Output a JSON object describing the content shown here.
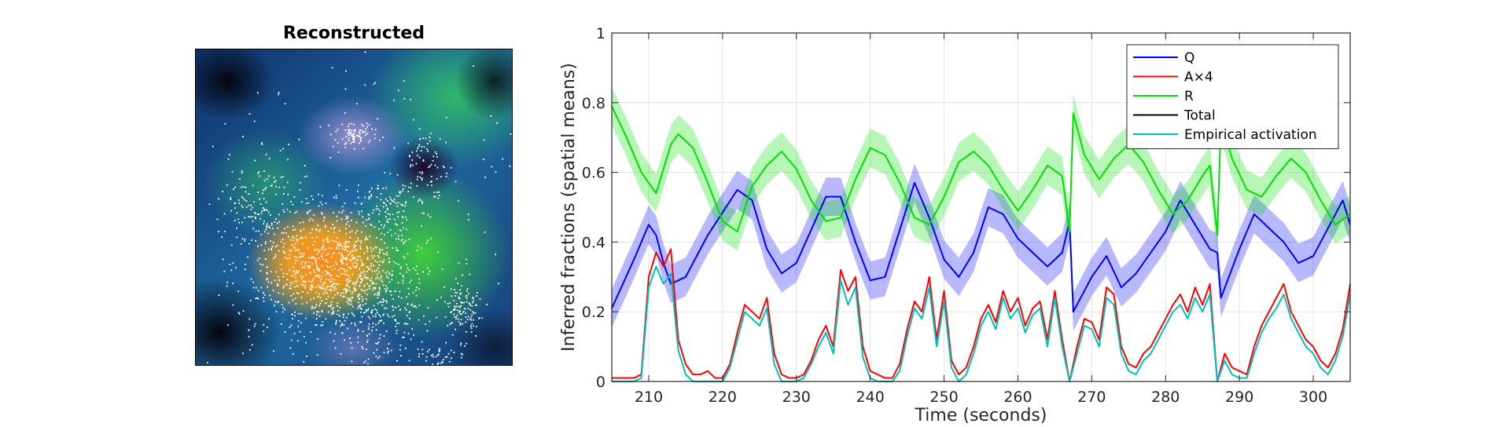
{
  "image_panel": {
    "title": "Reconstructed"
  },
  "chart_data": {
    "type": "line",
    "title": "",
    "xlabel": "Time (seconds)",
    "ylabel": "Inferred fractions (spatial means)",
    "xlim": [
      205,
      305
    ],
    "ylim": [
      0,
      1
    ],
    "xticks": [
      210,
      220,
      230,
      240,
      250,
      260,
      270,
      280,
      290,
      300
    ],
    "yticks": [
      0,
      0.2,
      0.4,
      0.6,
      0.8,
      1
    ],
    "grid": true,
    "legend_position": "top-right",
    "series": [
      {
        "name": "Q",
        "color": "#0000ff",
        "band": true,
        "x": [
          205,
          208,
          210,
          211,
          212,
          213,
          215,
          218,
          222,
          224,
          226,
          228,
          230,
          234,
          236,
          238,
          240,
          242,
          246,
          248,
          250,
          252,
          254,
          256,
          258,
          260,
          262,
          264,
          266,
          267,
          267.5,
          270,
          272,
          274,
          276,
          280,
          282,
          284,
          286,
          287,
          287.5,
          290,
          292,
          294,
          296,
          298,
          300,
          304,
          305
        ],
        "y": [
          0.21,
          0.35,
          0.45,
          0.42,
          0.34,
          0.28,
          0.3,
          0.42,
          0.55,
          0.52,
          0.38,
          0.31,
          0.34,
          0.53,
          0.53,
          0.4,
          0.29,
          0.3,
          0.57,
          0.47,
          0.35,
          0.3,
          0.37,
          0.5,
          0.48,
          0.41,
          0.37,
          0.33,
          0.37,
          0.46,
          0.2,
          0.3,
          0.36,
          0.27,
          0.31,
          0.43,
          0.52,
          0.45,
          0.38,
          0.37,
          0.24,
          0.38,
          0.48,
          0.44,
          0.4,
          0.34,
          0.36,
          0.52,
          0.45
        ]
      },
      {
        "name": "A×4",
        "color": "#ff0000",
        "band": false,
        "x": [
          205,
          208,
          209,
          210,
          211,
          212,
          213,
          214,
          215,
          216,
          217,
          218,
          219,
          220,
          221,
          222,
          223,
          224,
          225,
          226,
          227,
          228,
          229,
          230,
          231,
          232,
          233,
          234,
          235,
          236,
          237,
          238,
          239,
          240,
          241,
          242,
          243,
          244,
          245,
          246,
          247,
          248,
          249,
          250,
          251,
          252,
          253,
          254,
          255,
          256,
          257,
          258,
          259,
          260,
          261,
          262,
          263,
          264,
          265,
          266,
          267,
          268,
          269,
          270,
          271,
          272,
          273,
          274,
          275,
          276,
          277,
          278,
          279,
          280,
          281,
          282,
          283,
          284,
          285,
          286,
          287,
          288,
          289,
          290,
          291,
          292,
          293,
          294,
          295,
          296,
          297,
          298,
          299,
          300,
          301,
          302,
          303,
          304,
          305
        ],
        "y": [
          0.01,
          0.01,
          0.02,
          0.3,
          0.37,
          0.33,
          0.38,
          0.12,
          0.05,
          0.02,
          0.02,
          0.03,
          0.01,
          0.01,
          0.05,
          0.14,
          0.22,
          0.2,
          0.18,
          0.24,
          0.08,
          0.02,
          0.01,
          0.01,
          0.02,
          0.06,
          0.12,
          0.16,
          0.1,
          0.32,
          0.26,
          0.3,
          0.1,
          0.03,
          0.02,
          0.01,
          0.01,
          0.05,
          0.15,
          0.23,
          0.2,
          0.3,
          0.12,
          0.26,
          0.06,
          0.02,
          0.04,
          0.1,
          0.18,
          0.22,
          0.17,
          0.26,
          0.2,
          0.24,
          0.16,
          0.21,
          0.23,
          0.12,
          0.26,
          0.12,
          0.0,
          0.1,
          0.18,
          0.17,
          0.12,
          0.27,
          0.25,
          0.1,
          0.05,
          0.04,
          0.08,
          0.1,
          0.14,
          0.18,
          0.22,
          0.25,
          0.2,
          0.27,
          0.22,
          0.28,
          0.0,
          0.08,
          0.04,
          0.03,
          0.02,
          0.1,
          0.16,
          0.2,
          0.24,
          0.28,
          0.2,
          0.16,
          0.12,
          0.1,
          0.06,
          0.04,
          0.08,
          0.15,
          0.28
        ]
      },
      {
        "name": "R",
        "color": "#00e000",
        "band": true,
        "x": [
          205,
          207,
          209,
          211,
          213,
          214,
          216,
          218,
          220,
          222,
          224,
          226,
          228,
          230,
          232,
          234,
          236,
          238,
          240,
          242,
          244,
          246,
          248,
          250,
          252,
          254,
          256,
          258,
          260,
          262,
          264,
          266,
          267,
          267.5,
          269,
          271,
          273,
          275,
          277,
          279,
          281,
          283,
          285,
          286,
          287,
          287.5,
          289,
          291,
          293,
          295,
          297,
          299,
          301,
          303,
          305
        ],
        "y": [
          0.79,
          0.7,
          0.6,
          0.54,
          0.68,
          0.71,
          0.67,
          0.57,
          0.46,
          0.43,
          0.56,
          0.62,
          0.66,
          0.61,
          0.52,
          0.46,
          0.47,
          0.58,
          0.67,
          0.65,
          0.57,
          0.47,
          0.45,
          0.53,
          0.63,
          0.66,
          0.62,
          0.55,
          0.49,
          0.55,
          0.62,
          0.59,
          0.43,
          0.77,
          0.65,
          0.58,
          0.64,
          0.68,
          0.63,
          0.55,
          0.48,
          0.52,
          0.59,
          0.62,
          0.42,
          0.75,
          0.64,
          0.55,
          0.53,
          0.59,
          0.64,
          0.6,
          0.52,
          0.45,
          0.48
        ]
      },
      {
        "name": "Total",
        "color": "#000000",
        "band": false,
        "x": [
          205,
          305
        ],
        "y": [
          1,
          1
        ]
      },
      {
        "name": "Empirical activation",
        "color": "#00bfbf",
        "band": false,
        "x": [
          205,
          208,
          209,
          210,
          211,
          212,
          213,
          214,
          215,
          216,
          217,
          218,
          219,
          220,
          221,
          222,
          223,
          224,
          225,
          226,
          227,
          228,
          229,
          230,
          231,
          232,
          233,
          234,
          235,
          236,
          237,
          238,
          239,
          240,
          241,
          242,
          243,
          244,
          245,
          246,
          247,
          248,
          249,
          250,
          251,
          252,
          253,
          254,
          255,
          256,
          257,
          258,
          259,
          260,
          261,
          262,
          263,
          264,
          265,
          266,
          267,
          268,
          269,
          270,
          271,
          272,
          273,
          274,
          275,
          276,
          277,
          278,
          279,
          280,
          281,
          282,
          283,
          284,
          285,
          286,
          287,
          288,
          289,
          290,
          291,
          292,
          293,
          294,
          295,
          296,
          297,
          298,
          299,
          300,
          301,
          302,
          303,
          304,
          305
        ],
        "y": [
          0.0,
          0.0,
          0.01,
          0.27,
          0.33,
          0.28,
          0.31,
          0.09,
          0.02,
          0.0,
          0.0,
          0.0,
          0.0,
          0.0,
          0.04,
          0.12,
          0.2,
          0.18,
          0.16,
          0.21,
          0.05,
          0.0,
          0.0,
          0.0,
          0.01,
          0.05,
          0.1,
          0.14,
          0.08,
          0.29,
          0.22,
          0.27,
          0.07,
          0.01,
          0.0,
          0.0,
          0.0,
          0.03,
          0.13,
          0.21,
          0.18,
          0.27,
          0.1,
          0.23,
          0.04,
          0.0,
          0.02,
          0.08,
          0.16,
          0.2,
          0.15,
          0.24,
          0.18,
          0.21,
          0.14,
          0.19,
          0.21,
          0.1,
          0.24,
          0.1,
          0.0,
          0.08,
          0.16,
          0.15,
          0.1,
          0.24,
          0.22,
          0.08,
          0.03,
          0.02,
          0.06,
          0.08,
          0.12,
          0.16,
          0.2,
          0.22,
          0.18,
          0.24,
          0.2,
          0.25,
          0.0,
          0.06,
          0.02,
          0.01,
          0.01,
          0.08,
          0.14,
          0.18,
          0.21,
          0.25,
          0.18,
          0.14,
          0.1,
          0.08,
          0.04,
          0.02,
          0.06,
          0.13,
          0.25
        ]
      }
    ]
  }
}
